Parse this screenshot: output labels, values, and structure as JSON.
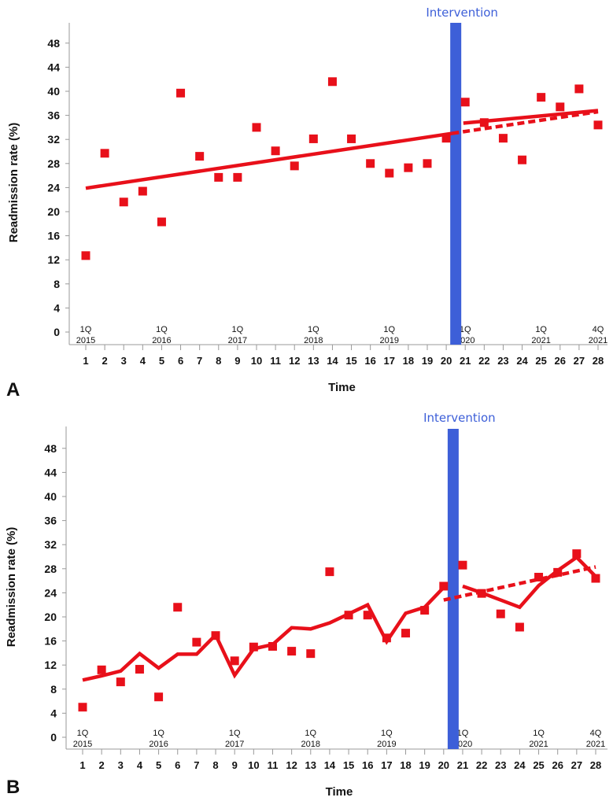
{
  "colors": {
    "data": "#e8101a",
    "intervention": "#3d5fd8",
    "axis": "#999999"
  },
  "chart_data": [
    {
      "panel": "A",
      "type": "scatter",
      "xlabel": "Time",
      "ylabel": "Readmission rate (%)",
      "ylim": [
        0,
        50
      ],
      "yticks": [
        0,
        4,
        8,
        12,
        16,
        20,
        24,
        28,
        32,
        36,
        40,
        44,
        48
      ],
      "x": [
        1,
        2,
        3,
        4,
        5,
        6,
        7,
        8,
        9,
        10,
        11,
        12,
        13,
        14,
        15,
        16,
        17,
        18,
        19,
        20,
        21,
        22,
        23,
        24,
        25,
        26,
        27,
        28
      ],
      "values": [
        12.7,
        29.7,
        21.6,
        23.4,
        18.3,
        39.7,
        29.2,
        25.7,
        25.7,
        34.0,
        30.1,
        27.6,
        32.1,
        41.6,
        32.1,
        28.0,
        26.4,
        27.3,
        28.0,
        32.2,
        38.2,
        34.8,
        32.2,
        28.6,
        39.0,
        37.4,
        40.4,
        34.4
      ],
      "intervention": {
        "label": "Intervention",
        "x": 20.5
      },
      "quarter_labels": [
        {
          "x": 1,
          "q": "1Q",
          "year": "2015"
        },
        {
          "x": 5,
          "q": "1Q",
          "year": "2016"
        },
        {
          "x": 9,
          "q": "1Q",
          "year": "2017"
        },
        {
          "x": 13,
          "q": "1Q",
          "year": "2018"
        },
        {
          "x": 17,
          "q": "1Q",
          "year": "2019"
        },
        {
          "x": 21,
          "q": "1Q",
          "year": "2020"
        },
        {
          "x": 25,
          "q": "1Q",
          "year": "2021"
        },
        {
          "x": 28,
          "q": "4Q",
          "year": "2021"
        }
      ],
      "trend_pre": {
        "x": [
          1,
          20.3
        ],
        "y": [
          23.9,
          33.0
        ]
      },
      "trend_post": {
        "x": [
          20.9,
          28
        ],
        "y": [
          34.7,
          36.8
        ]
      },
      "counterfactual": {
        "x": [
          20.3,
          28
        ],
        "y": [
          33.0,
          36.6
        ]
      }
    },
    {
      "panel": "B",
      "type": "scatter",
      "xlabel": "Time",
      "ylabel": "Readmission rate (%)",
      "ylim": [
        0,
        50
      ],
      "yticks": [
        0,
        4,
        8,
        12,
        16,
        20,
        24,
        28,
        32,
        36,
        40,
        44,
        48
      ],
      "x": [
        1,
        2,
        3,
        4,
        5,
        6,
        7,
        8,
        9,
        10,
        11,
        12,
        13,
        14,
        15,
        16,
        17,
        18,
        19,
        20,
        21,
        22,
        23,
        24,
        25,
        26,
        27,
        28
      ],
      "values": [
        5.0,
        11.2,
        9.2,
        11.3,
        6.7,
        21.6,
        15.8,
        16.9,
        12.7,
        15.0,
        15.1,
        14.3,
        13.9,
        27.5,
        20.3,
        20.3,
        16.5,
        17.3,
        21.1,
        25.1,
        28.6,
        23.9,
        20.5,
        18.3,
        26.6,
        27.4,
        30.5,
        26.4
      ],
      "intervention": {
        "label": "Intervention",
        "x": 20.5
      },
      "quarter_labels": [
        {
          "x": 1,
          "q": "1Q",
          "year": "2015"
        },
        {
          "x": 5,
          "q": "1Q",
          "year": "2016"
        },
        {
          "x": 9,
          "q": "1Q",
          "year": "2017"
        },
        {
          "x": 13,
          "q": "1Q",
          "year": "2018"
        },
        {
          "x": 17,
          "q": "1Q",
          "year": "2019"
        },
        {
          "x": 21,
          "q": "1Q",
          "year": "2020"
        },
        {
          "x": 25,
          "q": "1Q",
          "year": "2021"
        },
        {
          "x": 28,
          "q": "4Q",
          "year": "2021"
        }
      ],
      "fit_pre": {
        "x": [
          1,
          2,
          3,
          4,
          5,
          6,
          7,
          8,
          9,
          10,
          11,
          12,
          13,
          14,
          15,
          16,
          17,
          18,
          19,
          20
        ],
        "y": [
          9.5,
          10.2,
          11.0,
          13.9,
          11.5,
          13.8,
          13.8,
          17.0,
          10.3,
          14.7,
          15.4,
          18.2,
          18.0,
          19.0,
          20.5,
          22.0,
          15.9,
          20.6,
          21.6,
          24.9
        ]
      },
      "fit_post": {
        "x": [
          21,
          22,
          23,
          24,
          25,
          26,
          27,
          28
        ],
        "y": [
          25.1,
          24.0,
          22.8,
          21.6,
          25.2,
          27.7,
          29.9,
          26.7
        ]
      },
      "counterfactual": {
        "x": [
          20,
          28
        ],
        "y": [
          22.8,
          28.3
        ]
      }
    }
  ],
  "panels": [
    {
      "label": "A"
    },
    {
      "label": "B"
    }
  ]
}
